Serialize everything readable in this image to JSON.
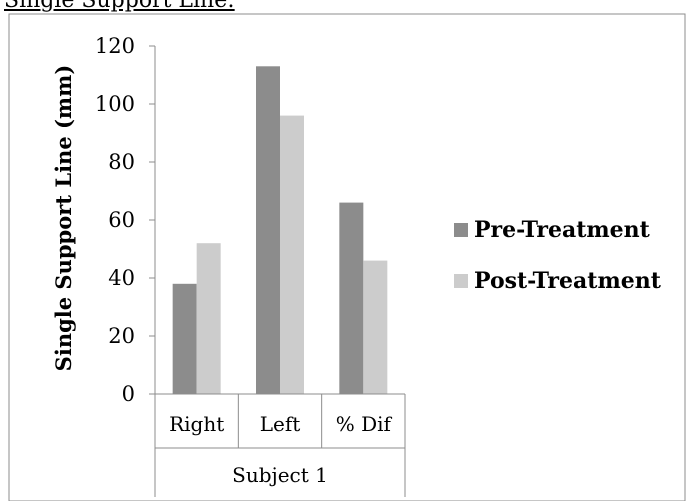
{
  "document": {
    "heading": "Single Support Line:"
  },
  "chart_data": {
    "type": "bar",
    "ylabel": "Single Support Line (mm)",
    "ylim": [
      0,
      120
    ],
    "yticks": [
      0,
      20,
      40,
      60,
      80,
      100,
      120
    ],
    "categories": [
      "Right",
      "Left",
      "% Dif"
    ],
    "group_label": "Subject 1",
    "series": [
      {
        "name": "Pre-Treatment",
        "color": "#8c8c8c",
        "values": [
          38,
          113,
          66
        ]
      },
      {
        "name": "Post-Treatment",
        "color": "#cccccc",
        "values": [
          52,
          96,
          46
        ]
      }
    ],
    "legend_position": "right",
    "grid": false
  }
}
